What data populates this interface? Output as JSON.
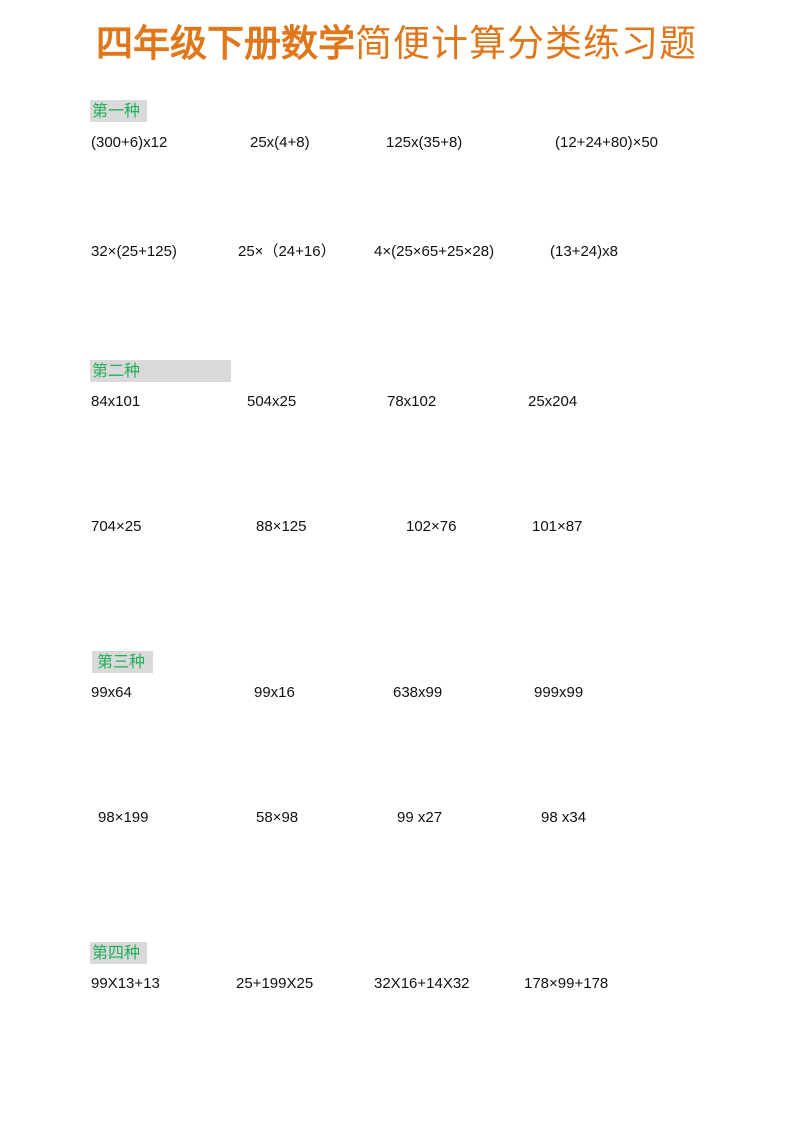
{
  "title": {
    "bold": "四年级下册数学",
    "regular": "简便计算分类练习题",
    "color": "#e0771b"
  },
  "sections": [
    {
      "label": "第一种",
      "rows": [
        [
          "(300+6)x12",
          "25x(4+8)",
          "125x(35+8)",
          "(12+24+80)×50"
        ],
        [
          "32×(25+125)",
          "25×（24+16）",
          "4×(25×65+25×28)",
          "(13+24)x8"
        ]
      ]
    },
    {
      "label": "第二种",
      "rows": [
        [
          "84x101",
          "504x25",
          "78x102",
          "25x204"
        ],
        [
          "704×25",
          "88×125",
          "102×76",
          "101×87"
        ]
      ]
    },
    {
      "label": "第三种",
      "rows": [
        [
          "99x64",
          "99x16",
          "638x99",
          "999x99"
        ],
        [
          "98×199",
          "58×98",
          "99 x27",
          "98 x34"
        ]
      ]
    },
    {
      "label": "第四种",
      "rows": [
        [
          "99X13+13",
          "25+199X25",
          "32X16+14X32",
          "178×99+178"
        ]
      ]
    }
  ],
  "colors": {
    "section_text": "#1fae5a",
    "section_bg": "#d9d9d9"
  }
}
